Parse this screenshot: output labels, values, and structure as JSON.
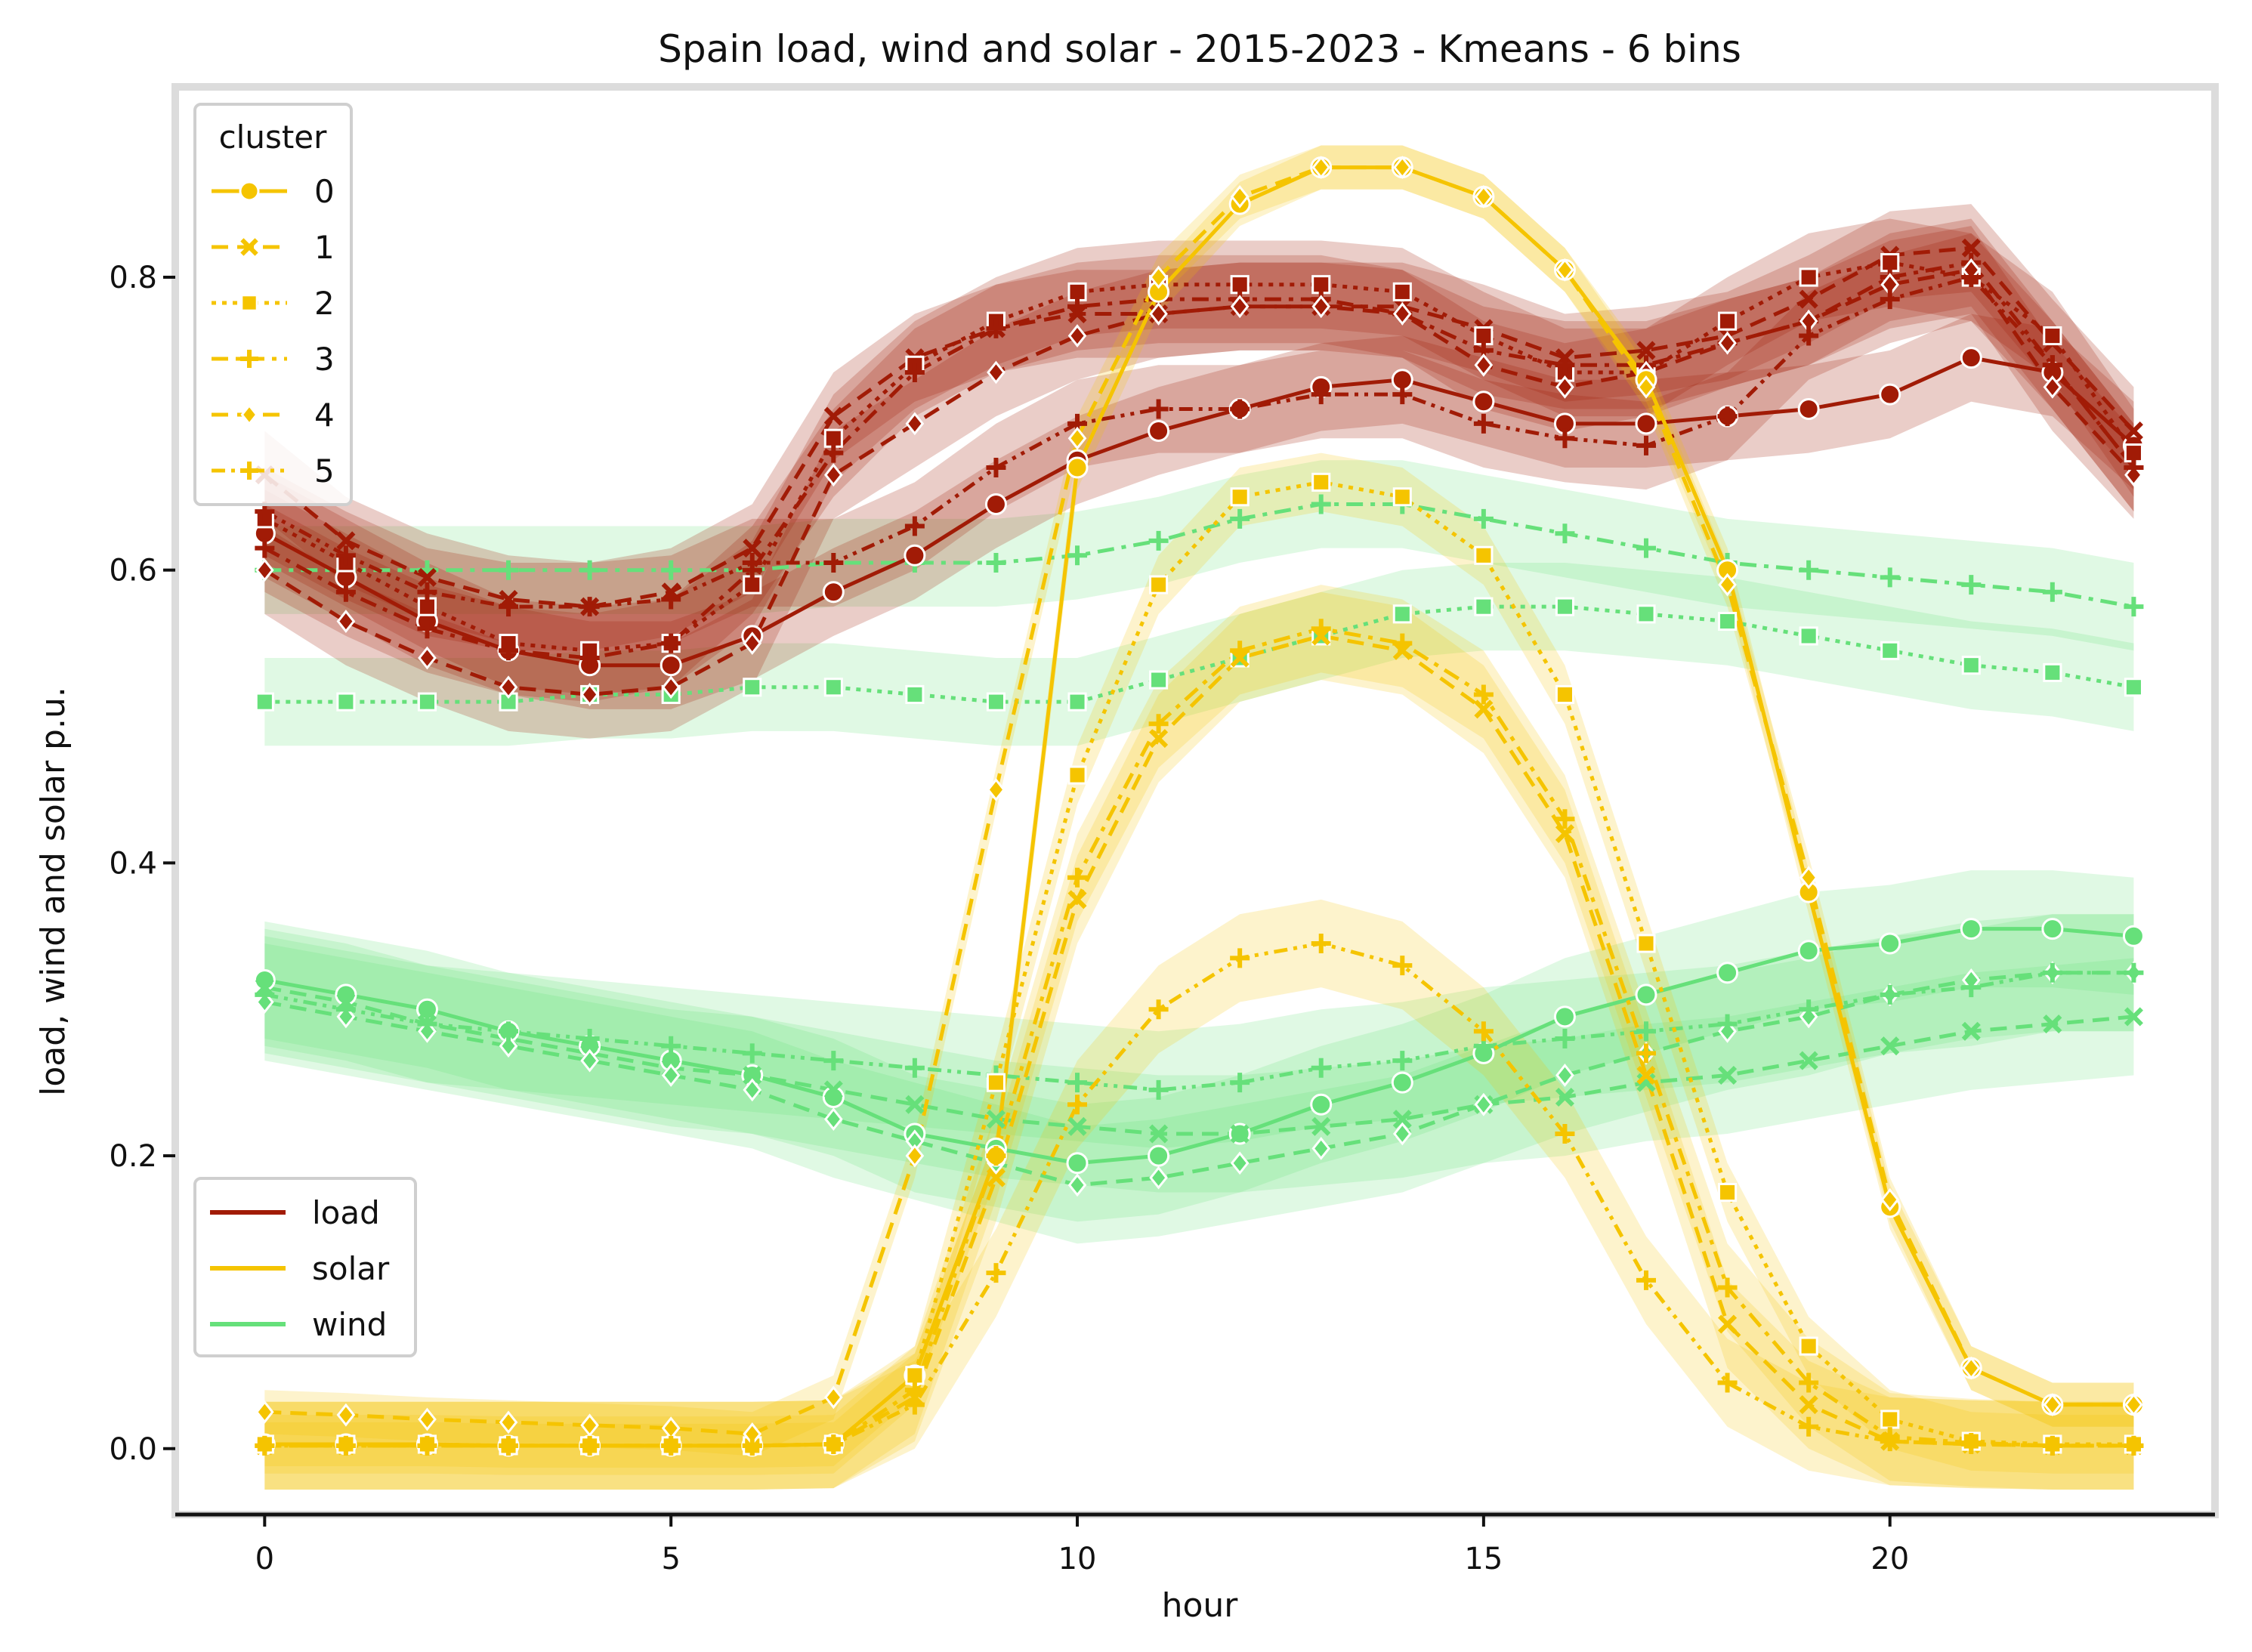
{
  "chart_data": {
    "type": "line",
    "title": "Spain load, wind and solar - 2015-2023 - Kmeans - 6 bins",
    "xlabel": "hour",
    "ylabel": "load, wind and solar p.u.",
    "xlim": [
      -1.1,
      24.0
    ],
    "ylim": [
      -0.045,
      0.93
    ],
    "xticks": [
      0,
      5,
      10,
      15,
      20
    ],
    "yticks": [
      0.0,
      0.2,
      0.4,
      0.6,
      0.8
    ],
    "xtick_labels": [
      "0",
      "5",
      "10",
      "15",
      "20"
    ],
    "ytick_labels": [
      "0.0",
      "0.2",
      "0.4",
      "0.6",
      "0.8"
    ],
    "colors": {
      "load": "#a11b06",
      "solar": "#f5c400",
      "wind": "#66e07a"
    },
    "legend_cluster": {
      "title": "cluster",
      "placement": "upper-left",
      "entries": [
        {
          "label": "0",
          "marker": "circle",
          "dash": "solid"
        },
        {
          "label": "1",
          "marker": "x",
          "dash": "dashed"
        },
        {
          "label": "2",
          "marker": "square",
          "dash": "dotted"
        },
        {
          "label": "3",
          "marker": "plus",
          "dash": "dashdot"
        },
        {
          "label": "4",
          "marker": "diamond",
          "dash": "dashed"
        },
        {
          "label": "5",
          "marker": "plus",
          "dash": "dashdotdot"
        }
      ]
    },
    "legend_type": {
      "placement": "lower-left",
      "entries": [
        {
          "label": "load",
          "color": "#a11b06"
        },
        {
          "label": "solar",
          "color": "#f5c400"
        },
        {
          "label": "wind",
          "color": "#66e07a"
        }
      ]
    },
    "x": [
      0,
      1,
      2,
      3,
      4,
      5,
      6,
      7,
      8,
      9,
      10,
      11,
      12,
      13,
      14,
      15,
      16,
      17,
      18,
      19,
      20,
      21,
      22,
      23
    ],
    "series": [
      {
        "name": "load cluster 0",
        "type": "load",
        "cluster": 0,
        "band": 0.03,
        "values": [
          0.625,
          0.595,
          0.565,
          0.545,
          0.535,
          0.535,
          0.555,
          0.585,
          0.61,
          0.645,
          0.675,
          0.695,
          0.71,
          0.725,
          0.73,
          0.715,
          0.7,
          0.7,
          0.705,
          0.71,
          0.72,
          0.745,
          0.735,
          0.685
        ]
      },
      {
        "name": "load cluster 1",
        "type": "load",
        "cluster": 1,
        "band": 0.03,
        "values": [
          0.665,
          0.62,
          0.595,
          0.58,
          0.575,
          0.585,
          0.615,
          0.705,
          0.745,
          0.765,
          0.775,
          0.775,
          0.78,
          0.78,
          0.78,
          0.765,
          0.745,
          0.75,
          0.76,
          0.785,
          0.815,
          0.82,
          0.755,
          0.695
        ]
      },
      {
        "name": "load cluster 2",
        "type": "load",
        "cluster": 2,
        "band": 0.03,
        "values": [
          0.635,
          0.605,
          0.575,
          0.55,
          0.545,
          0.55,
          0.59,
          0.69,
          0.74,
          0.77,
          0.79,
          0.795,
          0.795,
          0.795,
          0.79,
          0.76,
          0.735,
          0.735,
          0.77,
          0.8,
          0.81,
          0.8,
          0.76,
          0.68
        ]
      },
      {
        "name": "load cluster 3",
        "type": "load",
        "cluster": 3,
        "band": 0.03,
        "values": [
          0.615,
          0.585,
          0.56,
          0.545,
          0.54,
          0.55,
          0.6,
          0.68,
          0.735,
          0.765,
          0.78,
          0.785,
          0.785,
          0.785,
          0.775,
          0.75,
          0.74,
          0.74,
          0.755,
          0.77,
          0.8,
          0.81,
          0.74,
          0.67
        ]
      },
      {
        "name": "load cluster 4",
        "type": "load",
        "cluster": 4,
        "band": 0.03,
        "values": [
          0.6,
          0.565,
          0.54,
          0.52,
          0.515,
          0.52,
          0.55,
          0.665,
          0.7,
          0.735,
          0.76,
          0.775,
          0.78,
          0.78,
          0.775,
          0.74,
          0.725,
          0.735,
          0.755,
          0.77,
          0.795,
          0.805,
          0.725,
          0.665
        ]
      },
      {
        "name": "load cluster 5",
        "type": "load",
        "cluster": 5,
        "band": 0.03,
        "values": [
          0.64,
          0.61,
          0.585,
          0.575,
          0.575,
          0.58,
          0.605,
          0.605,
          0.63,
          0.67,
          0.7,
          0.71,
          0.71,
          0.72,
          0.72,
          0.7,
          0.69,
          0.685,
          0.705,
          0.76,
          0.785,
          0.8,
          0.74,
          0.67
        ]
      },
      {
        "name": "solar cluster 0",
        "type": "solar",
        "cluster": 0,
        "band": 0.015,
        "values": [
          0.003,
          0.003,
          0.003,
          0.002,
          0.002,
          0.002,
          0.002,
          0.003,
          0.05,
          0.2,
          0.67,
          0.79,
          0.85,
          0.875,
          0.875,
          0.855,
          0.805,
          0.73,
          0.6,
          0.38,
          0.165,
          0.055,
          0.03,
          0.03
        ]
      },
      {
        "name": "solar cluster 1",
        "type": "solar",
        "cluster": 1,
        "band": 0.03,
        "values": [
          0.002,
          0.002,
          0.002,
          0.002,
          0.002,
          0.002,
          0.002,
          0.003,
          0.035,
          0.185,
          0.375,
          0.485,
          0.54,
          0.555,
          0.545,
          0.505,
          0.42,
          0.255,
          0.085,
          0.03,
          0.005,
          0.003,
          0.002,
          0.002
        ]
      },
      {
        "name": "solar cluster 2",
        "type": "solar",
        "cluster": 2,
        "band": 0.02,
        "values": [
          0.003,
          0.003,
          0.003,
          0.002,
          0.002,
          0.002,
          0.002,
          0.003,
          0.05,
          0.25,
          0.46,
          0.59,
          0.65,
          0.66,
          0.65,
          0.61,
          0.515,
          0.345,
          0.175,
          0.07,
          0.02,
          0.005,
          0.003,
          0.003
        ]
      },
      {
        "name": "solar cluster 3",
        "type": "solar",
        "cluster": 3,
        "band": 0.03,
        "values": [
          0.002,
          0.002,
          0.002,
          0.002,
          0.002,
          0.002,
          0.002,
          0.003,
          0.04,
          0.2,
          0.39,
          0.495,
          0.545,
          0.56,
          0.55,
          0.515,
          0.43,
          0.27,
          0.11,
          0.045,
          0.008,
          0.004,
          0.002,
          0.002
        ]
      },
      {
        "name": "solar cluster 4",
        "type": "solar",
        "cluster": 4,
        "band": 0.015,
        "values": [
          0.025,
          0.023,
          0.02,
          0.018,
          0.016,
          0.014,
          0.01,
          0.035,
          0.2,
          0.45,
          0.69,
          0.8,
          0.855,
          0.875,
          0.875,
          0.855,
          0.805,
          0.725,
          0.59,
          0.39,
          0.17,
          0.055,
          0.03,
          0.03
        ]
      },
      {
        "name": "solar cluster 5",
        "type": "solar",
        "cluster": 5,
        "band": 0.03,
        "values": [
          0.002,
          0.002,
          0.002,
          0.002,
          0.002,
          0.002,
          0.002,
          0.003,
          0.03,
          0.12,
          0.235,
          0.3,
          0.335,
          0.345,
          0.33,
          0.285,
          0.215,
          0.115,
          0.045,
          0.015,
          0.005,
          0.003,
          0.002,
          0.002
        ]
      },
      {
        "name": "wind cluster 0",
        "type": "wind",
        "cluster": 0,
        "band": 0.04,
        "values": [
          0.32,
          0.31,
          0.3,
          0.285,
          0.275,
          0.265,
          0.255,
          0.24,
          0.215,
          0.205,
          0.195,
          0.2,
          0.215,
          0.235,
          0.25,
          0.27,
          0.295,
          0.31,
          0.325,
          0.34,
          0.345,
          0.355,
          0.355,
          0.35
        ]
      },
      {
        "name": "wind cluster 1",
        "type": "wind",
        "cluster": 1,
        "band": 0.04,
        "values": [
          0.315,
          0.305,
          0.29,
          0.28,
          0.27,
          0.26,
          0.255,
          0.245,
          0.235,
          0.225,
          0.22,
          0.215,
          0.215,
          0.22,
          0.225,
          0.235,
          0.24,
          0.25,
          0.255,
          0.265,
          0.275,
          0.285,
          0.29,
          0.295
        ]
      },
      {
        "name": "wind cluster 2",
        "type": "wind",
        "cluster": 2,
        "band": 0.03,
        "values": [
          0.51,
          0.51,
          0.51,
          0.51,
          0.515,
          0.515,
          0.52,
          0.52,
          0.515,
          0.51,
          0.51,
          0.525,
          0.54,
          0.555,
          0.57,
          0.575,
          0.575,
          0.57,
          0.565,
          0.555,
          0.545,
          0.535,
          0.53,
          0.52
        ]
      },
      {
        "name": "wind cluster 3",
        "type": "wind",
        "cluster": 3,
        "band": 0.03,
        "values": [
          0.6,
          0.6,
          0.6,
          0.6,
          0.6,
          0.6,
          0.6,
          0.605,
          0.605,
          0.605,
          0.61,
          0.62,
          0.635,
          0.645,
          0.645,
          0.635,
          0.625,
          0.615,
          0.605,
          0.6,
          0.595,
          0.59,
          0.585,
          0.575
        ]
      },
      {
        "name": "wind cluster 4",
        "type": "wind",
        "cluster": 4,
        "band": 0.04,
        "values": [
          0.305,
          0.295,
          0.285,
          0.275,
          0.265,
          0.255,
          0.245,
          0.225,
          0.21,
          0.195,
          0.18,
          0.185,
          0.195,
          0.205,
          0.215,
          0.235,
          0.255,
          0.27,
          0.285,
          0.295,
          0.31,
          0.32,
          0.325,
          0.325
        ]
      },
      {
        "name": "wind cluster 5",
        "type": "wind",
        "cluster": 5,
        "band": 0.04,
        "values": [
          0.31,
          0.3,
          0.29,
          0.285,
          0.28,
          0.275,
          0.27,
          0.265,
          0.26,
          0.255,
          0.25,
          0.245,
          0.25,
          0.26,
          0.265,
          0.275,
          0.28,
          0.285,
          0.29,
          0.3,
          0.31,
          0.315,
          0.325,
          0.325
        ]
      }
    ]
  }
}
